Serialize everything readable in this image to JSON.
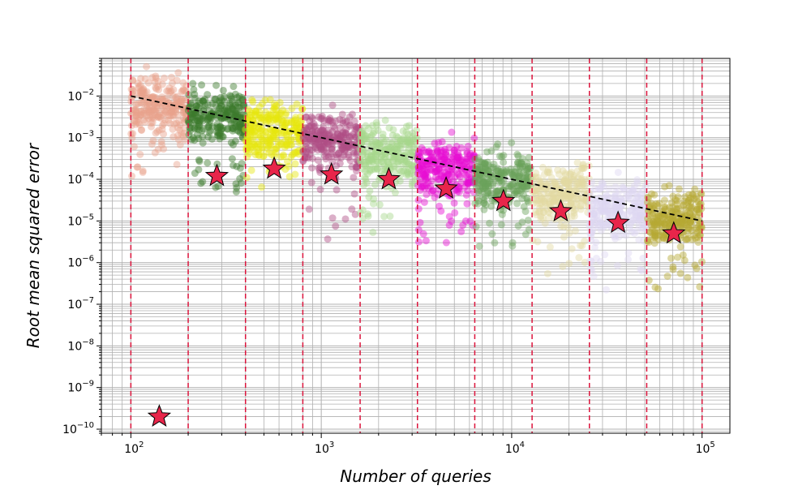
{
  "chart_data": {
    "type": "scatter",
    "title": "",
    "xlabel": "Number of queries",
    "ylabel": "Root mean squared error",
    "xscale": "log",
    "yscale": "log",
    "xlim": [
      70,
      140000
    ],
    "ylim": [
      8e-11,
      0.08
    ],
    "grid": true,
    "legend": null,
    "x_ticks": [
      {
        "value": 100,
        "base": "10",
        "exp": "2"
      },
      {
        "value": 1000,
        "base": "10",
        "exp": "3"
      },
      {
        "value": 10000,
        "base": "10",
        "exp": "4"
      },
      {
        "value": 100000,
        "base": "10",
        "exp": "5"
      }
    ],
    "y_ticks": [
      {
        "value": 1e-10,
        "base": "10",
        "exp": "−10"
      },
      {
        "value": 1e-09,
        "base": "10",
        "exp": "−9"
      },
      {
        "value": 1e-08,
        "base": "10",
        "exp": "−8"
      },
      {
        "value": 1e-07,
        "base": "10",
        "exp": "−7"
      },
      {
        "value": 1e-06,
        "base": "10",
        "exp": "−6"
      },
      {
        "value": 1e-05,
        "base": "10",
        "exp": "−5"
      },
      {
        "value": 0.0001,
        "base": "10",
        "exp": "−4"
      },
      {
        "value": 0.001,
        "base": "10",
        "exp": "−3"
      },
      {
        "value": 0.01,
        "base": "10",
        "exp": "−2"
      }
    ],
    "vlines": {
      "x": [
        100,
        200,
        400,
        800,
        1600,
        3200,
        6400,
        12800,
        25600,
        51200,
        100000
      ],
      "color": "#dc143c",
      "style": "dashed"
    },
    "trend_line": {
      "x": [
        100,
        100000
      ],
      "y": [
        0.01,
        1e-05
      ],
      "color": "#000000",
      "style": "dashed"
    },
    "series": [
      {
        "x_range": [
          100,
          200
        ],
        "y_center": 0.006,
        "color": "#e9a28c"
      },
      {
        "x_range": [
          200,
          400
        ],
        "y_center": 0.003,
        "color": "#3b7a2d"
      },
      {
        "x_range": [
          400,
          800
        ],
        "y_center": 0.0015,
        "color": "#e6e60e"
      },
      {
        "x_range": [
          800,
          1600
        ],
        "y_center": 0.0009,
        "color": "#b04d86"
      },
      {
        "x_range": [
          1600,
          3200
        ],
        "y_center": 0.00045,
        "color": "#a6d68c"
      },
      {
        "x_range": [
          3200,
          6400
        ],
        "y_center": 0.00018,
        "color": "#e60ed2"
      },
      {
        "x_range": [
          6400,
          12800
        ],
        "y_center": 0.0001,
        "color": "#6aa25a"
      },
      {
        "x_range": [
          12800,
          25600
        ],
        "y_center": 5e-05,
        "color": "#e3d9a2"
      },
      {
        "x_range": [
          25600,
          51200
        ],
        "y_center": 2e-05,
        "color": "#ddd8f2"
      },
      {
        "x_range": [
          51200,
          100000
        ],
        "y_center": 1.2e-05,
        "color": "#b5a834"
      }
    ],
    "stars": {
      "x": [
        141,
        283,
        566,
        1131,
        2263,
        4525,
        9051,
        18102,
        36204,
        71000
      ],
      "y": [
        2e-10,
        0.00012,
        0.00018,
        0.00013,
        0.0001,
        6e-05,
        3e-05,
        1.7e-05,
        9e-06,
        5e-06
      ],
      "color": "#e8254a"
    }
  }
}
